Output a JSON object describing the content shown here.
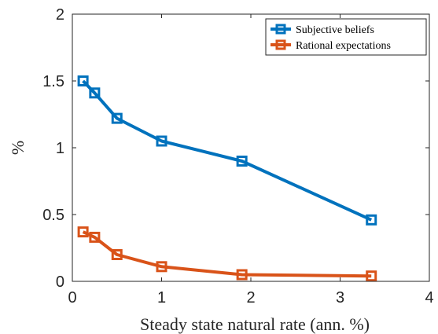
{
  "chart_data": {
    "type": "line",
    "title": "",
    "xlabel": "Steady state natural rate (ann. %)",
    "ylabel": "%",
    "xlim": [
      0,
      4
    ],
    "ylim": [
      0,
      2
    ],
    "xticks": [
      "0",
      "1",
      "2",
      "3",
      "4"
    ],
    "yticks": [
      "0",
      "0.5",
      "1",
      "1.5",
      "2"
    ],
    "grid": false,
    "legend_position": "top-right",
    "series": [
      {
        "name": "Subjective beliefs",
        "color": "#0072BD",
        "marker": "square",
        "x": [
          0.12,
          0.25,
          0.5,
          1.0,
          1.9,
          3.35
        ],
        "y": [
          1.5,
          1.41,
          1.22,
          1.05,
          0.9,
          0.46
        ]
      },
      {
        "name": "Rational expectations",
        "color": "#D95319",
        "marker": "square",
        "x": [
          0.12,
          0.25,
          0.5,
          1.0,
          1.9,
          3.35
        ],
        "y": [
          0.37,
          0.33,
          0.2,
          0.11,
          0.05,
          0.04
        ]
      }
    ]
  }
}
